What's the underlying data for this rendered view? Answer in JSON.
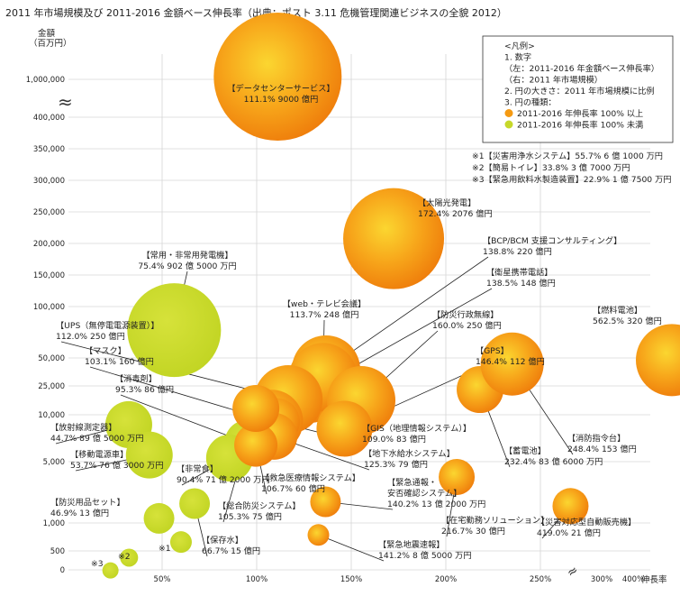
{
  "chart_data": {
    "type": "scatter",
    "title": "2011 年市場規模及び 2011-2016 金額ベース伸長率（出典：ポスト 3.11 危機管理関連ビジネスの全貌 2012）",
    "ylabel": "金額",
    "yunit": "（百万円）",
    "xlabel": "伸長率",
    "y_ticks": [
      "1,000,000",
      "400,000",
      "350,000",
      "300,000",
      "250,000",
      "200,000",
      "150,000",
      "100,000",
      "50,000",
      "25,000",
      "10,000",
      "5,000",
      "1,000",
      "500",
      "0"
    ],
    "x_ticks": [
      "50%",
      "100%",
      "150%",
      "200%",
      "250%",
      "300%",
      "400%",
      "500%"
    ],
    "legend": {
      "title": "<凡例>",
      "lines": [
        "1. 数字",
        "（左：2011-2016 年金額ベース伸長率）",
        "（右：2011 年市場規模）",
        "2. 円の大きさ：2011 年市場規模に比例",
        "3. 円の種類："
      ],
      "entries": [
        {
          "label": "2011-2016 年伸長率 100% 以上",
          "color": "#f59a12"
        },
        {
          "label": "2011-2016 年伸長率 100% 未満",
          "color": "#c6d82a"
        }
      ]
    },
    "notes": [
      "※1【災害用浄水システム】55.7% 6 億 1000 万円",
      "※2【簡易トイレ】33.8% 3 億 7000 万円",
      "※3【緊急用飲料水製造装置】22.9% 1 億 7500 万円"
    ],
    "series": [
      {
        "name": "データセンターサービス",
        "x": 111.1,
        "y": 900000,
        "label": [
          "【データセンターサービス】",
          "111.1% 9000 億円"
        ],
        "group": "high"
      },
      {
        "name": "太陽光発電",
        "x": 172.4,
        "y": 207600,
        "label": [
          "【太陽光発電】",
          "172.4% 2076 億円"
        ],
        "group": "high"
      },
      {
        "name": "常用・非常用発電機",
        "x": 75.4,
        "y": 90250,
        "label": [
          "【常用・非常用発電機】",
          "75.4% 902 億 5000 万円"
        ],
        "group": "low"
      },
      {
        "name": "BCP/BCM 支援コンサルティング",
        "x": 138.8,
        "y": 22000,
        "label": [
          "【BCP/BCM 支援コンサルティング】",
          "138.8% 220 億円"
        ],
        "group": "high"
      },
      {
        "name": "衛星携帯電話",
        "x": 138.5,
        "y": 14800,
        "label": [
          "【衛星携帯電話】",
          "138.5% 148 億円"
        ],
        "group": "high"
      },
      {
        "name": "web・テレビ会議",
        "x": 113.7,
        "y": 24800,
        "label": [
          "【web・テレビ会議】",
          "113.7% 248 億円"
        ],
        "group": "high"
      },
      {
        "name": "燃料電池",
        "x": 562.5,
        "y": 32000,
        "label": [
          "【燃料電池】",
          "562.5% 320 億円"
        ],
        "group": "high"
      },
      {
        "name": "UPS（無停電電源装置）",
        "x": 112.0,
        "y": 25000,
        "label": [
          "【UPS（無停電電源装置）】",
          "112.0% 250 億円"
        ],
        "group": "high"
      },
      {
        "name": "防災行政無線",
        "x": 160.0,
        "y": 25000,
        "label": [
          "【防災行政無線】",
          "160.0% 250 億円"
        ],
        "group": "high"
      },
      {
        "name": "マスク",
        "x": 103.1,
        "y": 16000,
        "label": [
          "【マスク】",
          "103.1% 160 億円"
        ],
        "group": "high"
      },
      {
        "name": "GPS",
        "x": 146.4,
        "y": 11200,
        "label": [
          "【GPS】",
          "146.4% 112 億円"
        ],
        "group": "high"
      },
      {
        "name": "消毒剤",
        "x": 95.3,
        "y": 8600,
        "label": [
          "【消毒剤】",
          "95.3% 86 億円"
        ],
        "group": "low"
      },
      {
        "name": "放射線測定器",
        "x": 44.7,
        "y": 8950,
        "label": [
          "【放射線測定器】",
          "44.7% 89 億 5000 万円"
        ],
        "group": "low"
      },
      {
        "name": "移動電源車",
        "x": 53.7,
        "y": 7630,
        "label": [
          "【移動電源車】",
          "53.7% 76 億 3000 万円"
        ],
        "group": "low"
      },
      {
        "name": "非常食",
        "x": 90.4,
        "y": 7120,
        "label": [
          "【非常食】",
          "90.4% 71 億 2000 万円"
        ],
        "group": "low"
      },
      {
        "name": "GIS（地理情報システム）",
        "x": 109.0,
        "y": 8300,
        "label": [
          "【GIS（地理情報システム）】",
          "109.0% 83 億円"
        ],
        "group": "high"
      },
      {
        "name": "地下水給水システム",
        "x": 125.3,
        "y": 7900,
        "label": [
          "【地下水給水システム】",
          "125.3% 79 億円"
        ],
        "group": "high"
      },
      {
        "name": "救急医療情報システム",
        "x": 106.7,
        "y": 6000,
        "label": [
          "【救急医療情報システム】",
          "106.7% 60 億円"
        ],
        "group": "high"
      },
      {
        "name": "総合防災システム",
        "x": 105.3,
        "y": 7500,
        "label": [
          "【総合防災システム】",
          "105.3% 75 億円"
        ],
        "group": "high"
      },
      {
        "name": "蓄電池",
        "x": 232.4,
        "y": 8360,
        "label": [
          "【蓄電池】",
          "232.4% 83 億 6000 万円"
        ],
        "group": "high"
      },
      {
        "name": "消防指令台",
        "x": 248.4,
        "y": 15300,
        "label": [
          "【消防指令台】",
          "248.4% 153 億円"
        ],
        "group": "high"
      },
      {
        "name": "緊急通報・安否確認システム",
        "x": 140.2,
        "y": 1320,
        "label": [
          "【緊急通報・",
          "安否確認システム】",
          "140.2% 13 億 2000 万円"
        ],
        "group": "high"
      },
      {
        "name": "在宅勤務ソリューション",
        "x": 216.7,
        "y": 3000,
        "label": [
          "【在宅勤務ソリューション】",
          "216.7% 30 億円"
        ],
        "group": "high"
      },
      {
        "name": "災害対応型自動販売機",
        "x": 419.0,
        "y": 2100,
        "label": [
          "【災害対応型自動販売機】",
          "419.0% 21 億円"
        ],
        "group": "high"
      },
      {
        "name": "防災用品セット",
        "x": 46.9,
        "y": 1300,
        "label": [
          "【防災用品セット】",
          "46.9% 13 億円"
        ],
        "group": "low"
      },
      {
        "name": "保存水",
        "x": 66.7,
        "y": 1500,
        "label": [
          "【保存水】",
          "66.7% 15 億円"
        ],
        "group": "low"
      },
      {
        "name": "緊急地震速報",
        "x": 141.2,
        "y": 850,
        "label": [
          "【緊急地震速報】",
          "141.2% 8 億 5000 万円"
        ],
        "group": "high"
      },
      {
        "name": "※1 災害用浄水システム",
        "x": 55.7,
        "y": 610,
        "label": [
          "※1"
        ],
        "group": "low"
      },
      {
        "name": "※2 簡易トイレ",
        "x": 33.8,
        "y": 370,
        "label": [
          "※2"
        ],
        "group": "low"
      },
      {
        "name": "※3 緊急用飲料水製造装置",
        "x": 22.9,
        "y": 175,
        "label": [
          "※3"
        ],
        "group": "low"
      }
    ]
  }
}
